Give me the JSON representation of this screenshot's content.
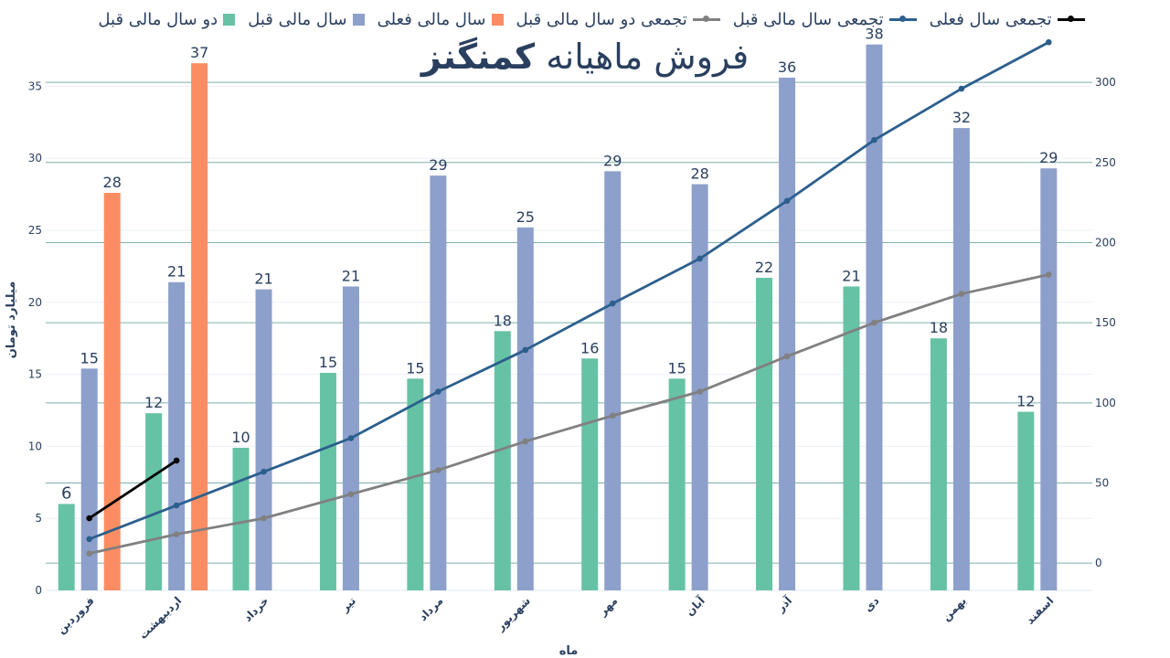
{
  "chart_data": {
    "type": "bar",
    "title": "فروش ماهیانه",
    "title_brand": "کمنگنز",
    "xlabel": "ماه",
    "ylabel": "میلیارد تومان",
    "ylim": [
      0,
      37.5
    ],
    "y2lim": [
      -17,
      320
    ],
    "yticks": [
      "0",
      "5",
      "10",
      "15",
      "20",
      "25",
      "30",
      "35"
    ],
    "y2ticks": [
      "0",
      "50",
      "100",
      "150",
      "200",
      "250",
      "300"
    ],
    "legend_position": "top",
    "grid": true,
    "categories": [
      "فروردین",
      "اردیبهشت",
      "خرداد",
      "تیر",
      "مرداد",
      "شهریور",
      "مهر",
      "آبان",
      "آذر",
      "دی",
      "بهمن",
      "اسفند"
    ],
    "series": [
      {
        "name": "دو سال مالی قبل",
        "kind": "bar",
        "color": "#66c2a5",
        "values": [
          6,
          12.3,
          9.9,
          15.1,
          14.7,
          18,
          16.1,
          14.7,
          21.7,
          21.1,
          17.5,
          12.4
        ],
        "labels": [
          "6",
          "12",
          "10",
          "15",
          "15",
          "18",
          "16",
          "15",
          "22",
          "21",
          "18",
          "12"
        ]
      },
      {
        "name": "سال مالی قبل",
        "kind": "bar",
        "color": "#8da0cb",
        "values": [
          15.4,
          21.4,
          20.9,
          21.1,
          28.8,
          25.2,
          29.1,
          28.2,
          35.6,
          37.9,
          32.1,
          29.3
        ],
        "labels": [
          "15",
          "21",
          "21",
          "21",
          "29",
          "25",
          "29",
          "28",
          "36",
          "38",
          "32",
          "29"
        ]
      },
      {
        "name": "سال مالی فعلی",
        "kind": "bar",
        "color": "#fc8d62",
        "values": [
          27.6,
          36.6,
          null,
          null,
          null,
          null,
          null,
          null,
          null,
          null,
          null,
          null
        ],
        "labels": [
          "28",
          "37",
          "",
          "",
          "",
          "",
          "",
          "",
          "",
          "",
          "",
          ""
        ]
      },
      {
        "name": "تجمعی دو سال مالی قبل",
        "kind": "line",
        "axis": "right",
        "color": "#808080",
        "values": [
          6,
          18,
          28,
          43,
          58,
          76,
          92,
          107,
          129,
          150,
          168,
          180
        ]
      },
      {
        "name": "تجمعی سال مالی قبل",
        "kind": "line",
        "axis": "right",
        "color": "#2c5f8d",
        "values": [
          15,
          36,
          57,
          78,
          107,
          133,
          162,
          190,
          226,
          264,
          296,
          325
        ]
      },
      {
        "name": "تجمعی سال فعلی",
        "kind": "line",
        "axis": "right",
        "color": "#000000",
        "values": [
          28,
          64,
          null,
          null,
          null,
          null,
          null,
          null,
          null,
          null,
          null,
          null
        ]
      }
    ]
  }
}
